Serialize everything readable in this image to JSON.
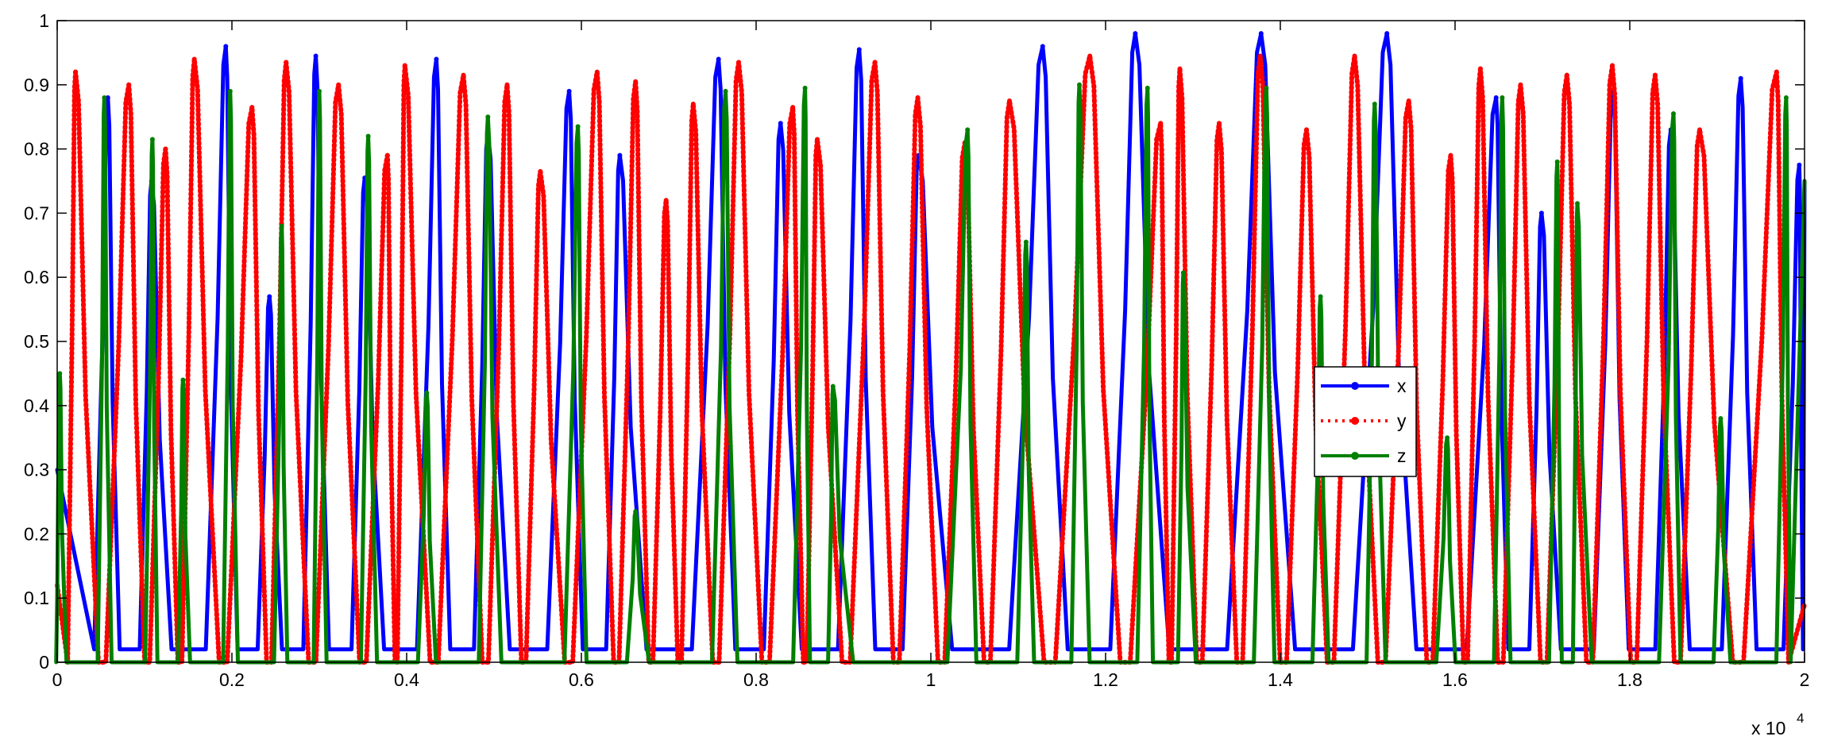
{
  "chart_data": {
    "type": "line",
    "title": "",
    "xlabel": "",
    "ylabel": "",
    "x_multiplier": {
      "base": "x 10",
      "exponent": "4"
    },
    "xlim": [
      0,
      2
    ],
    "ylim": [
      0,
      1
    ],
    "x_ticks": [
      "0",
      "0.2",
      "0.4",
      "0.6",
      "0.8",
      "1",
      "1.2",
      "1.4",
      "1.6",
      "1.8",
      "2"
    ],
    "y_ticks": [
      "0",
      "0.1",
      "0.2",
      "0.3",
      "0.4",
      "0.5",
      "0.6",
      "0.7",
      "0.8",
      "0.9",
      "1"
    ],
    "grid": false,
    "legend_position": "right",
    "series": [
      {
        "name": "x",
        "color": "#0000ff",
        "line_style": "solid",
        "marker": "dot",
        "peaks": [
          [
            0.058,
            0.88
          ],
          [
            0.108,
            0.75
          ],
          [
            0.193,
            0.96
          ],
          [
            0.243,
            0.57
          ],
          [
            0.296,
            0.945
          ],
          [
            0.352,
            0.755
          ],
          [
            0.434,
            0.94
          ],
          [
            0.493,
            0.825
          ],
          [
            0.586,
            0.89
          ],
          [
            0.644,
            0.79
          ],
          [
            0.757,
            0.94
          ],
          [
            0.828,
            0.84
          ],
          [
            0.918,
            0.955
          ],
          [
            0.986,
            0.79
          ],
          [
            1.128,
            0.96
          ],
          [
            1.234,
            0.98
          ],
          [
            1.378,
            0.98
          ],
          [
            1.522,
            0.98
          ],
          [
            1.647,
            0.88
          ],
          [
            1.699,
            0.7
          ],
          [
            1.781,
            0.89
          ],
          [
            1.847,
            0.83
          ],
          [
            1.927,
            0.91
          ],
          [
            1.994,
            0.775
          ]
        ],
        "minimum": 0.02
      },
      {
        "name": "y",
        "color": "#ff0000",
        "line_style": "dotted",
        "marker": "dot",
        "peaks": [
          [
            0.021,
            0.92
          ],
          [
            0.082,
            0.9
          ],
          [
            0.124,
            0.8
          ],
          [
            0.157,
            0.94
          ],
          [
            0.223,
            0.865
          ],
          [
            0.262,
            0.935
          ],
          [
            0.322,
            0.9
          ],
          [
            0.378,
            0.79
          ],
          [
            0.398,
            0.93
          ],
          [
            0.465,
            0.915
          ],
          [
            0.515,
            0.9
          ],
          [
            0.553,
            0.765
          ],
          [
            0.618,
            0.92
          ],
          [
            0.662,
            0.905
          ],
          [
            0.697,
            0.72
          ],
          [
            0.728,
            0.87
          ],
          [
            0.78,
            0.935
          ],
          [
            0.842,
            0.865
          ],
          [
            0.87,
            0.815
          ],
          [
            0.936,
            0.935
          ],
          [
            0.985,
            0.88
          ],
          [
            1.039,
            0.81
          ],
          [
            1.09,
            0.875
          ],
          [
            1.182,
            0.945
          ],
          [
            1.263,
            0.84
          ],
          [
            1.285,
            0.925
          ],
          [
            1.33,
            0.84
          ],
          [
            1.377,
            0.945
          ],
          [
            1.43,
            0.83
          ],
          [
            1.485,
            0.945
          ],
          [
            1.547,
            0.875
          ],
          [
            1.595,
            0.79
          ],
          [
            1.629,
            0.925
          ],
          [
            1.675,
            0.9
          ],
          [
            1.728,
            0.915
          ],
          [
            1.78,
            0.93
          ],
          [
            1.829,
            0.915
          ],
          [
            1.88,
            0.83
          ],
          [
            1.968,
            0.92
          ]
        ],
        "minimum": 0.0
      },
      {
        "name": "z",
        "color": "#008000",
        "line_style": "solid",
        "marker": "dot",
        "peaks": [
          [
            0.003,
            0.45
          ],
          [
            0.054,
            0.88
          ],
          [
            0.109,
            0.815
          ],
          [
            0.144,
            0.44
          ],
          [
            0.198,
            0.89
          ],
          [
            0.257,
            0.68
          ],
          [
            0.3,
            0.89
          ],
          [
            0.356,
            0.82
          ],
          [
            0.423,
            0.42
          ],
          [
            0.493,
            0.85
          ],
          [
            0.596,
            0.835
          ],
          [
            0.662,
            0.235
          ],
          [
            0.765,
            0.89
          ],
          [
            0.856,
            0.895
          ],
          [
            0.888,
            0.43
          ],
          [
            1.042,
            0.83
          ],
          [
            1.109,
            0.655
          ],
          [
            1.17,
            0.9
          ],
          [
            1.248,
            0.895
          ],
          [
            1.289,
            0.607
          ],
          [
            1.384,
            0.895
          ],
          [
            1.446,
            0.57
          ],
          [
            1.508,
            0.87
          ],
          [
            1.591,
            0.35
          ],
          [
            1.654,
            0.88
          ],
          [
            1.717,
            0.78
          ],
          [
            1.74,
            0.715
          ],
          [
            1.85,
            0.855
          ],
          [
            1.904,
            0.38
          ],
          [
            1.979,
            0.88
          ]
        ],
        "minimum": 0.0
      }
    ]
  }
}
